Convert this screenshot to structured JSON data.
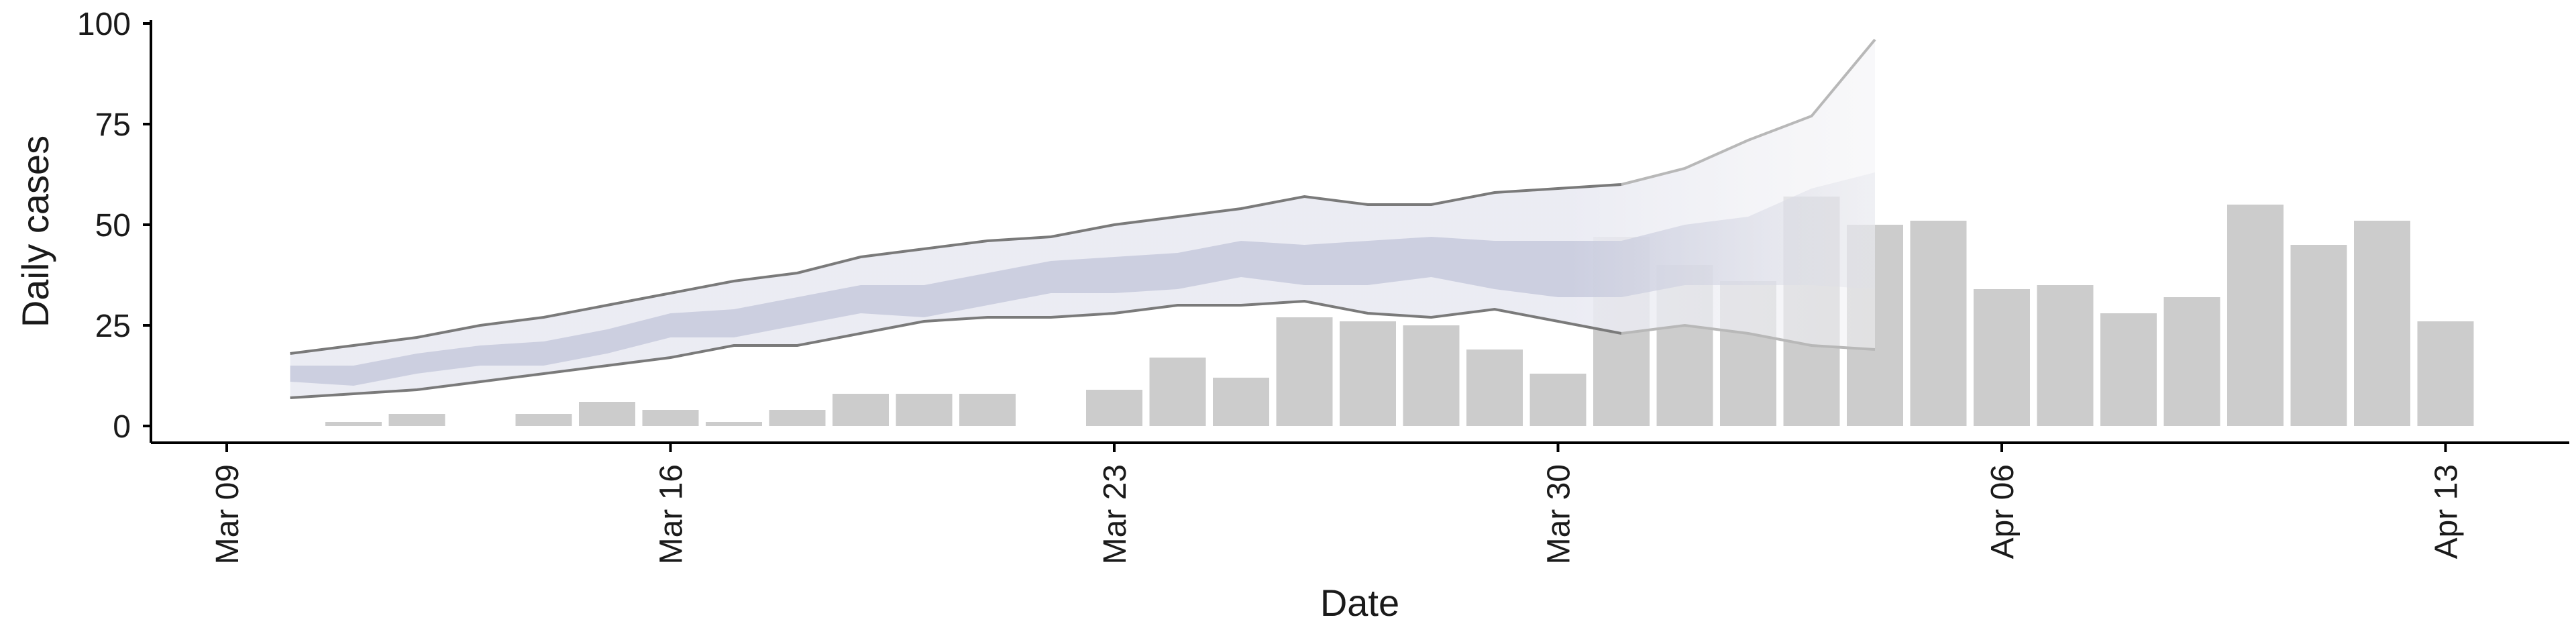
{
  "chart_data": {
    "type": "bar",
    "xlabel": "Date",
    "ylabel": "Daily cases",
    "ylim": [
      0,
      100
    ],
    "y_ticks": [
      0,
      25,
      50,
      75,
      100
    ],
    "xlim": [
      "2020-03-09",
      "2020-04-14"
    ],
    "x_ticks": [
      {
        "date": "2020-03-09",
        "label": "Mar 09"
      },
      {
        "date": "2020-03-16",
        "label": "Mar 16"
      },
      {
        "date": "2020-03-23",
        "label": "Mar 23"
      },
      {
        "date": "2020-03-30",
        "label": "Mar 30"
      },
      {
        "date": "2020-04-06",
        "label": "Apr 06"
      },
      {
        "date": "2020-04-13",
        "label": "Apr 13"
      }
    ],
    "grid": false,
    "series": [
      {
        "type": "bar",
        "color": "#cccccc",
        "x": [
          "2020-03-11",
          "2020-03-12",
          "2020-03-13",
          "2020-03-14",
          "2020-03-15",
          "2020-03-16",
          "2020-03-17",
          "2020-03-18",
          "2020-03-19",
          "2020-03-20",
          "2020-03-21",
          "2020-03-22",
          "2020-03-23",
          "2020-03-24",
          "2020-03-25",
          "2020-03-26",
          "2020-03-27",
          "2020-03-28",
          "2020-03-29",
          "2020-03-30",
          "2020-03-31",
          "2020-04-01",
          "2020-04-02",
          "2020-04-03",
          "2020-04-04",
          "2020-04-05",
          "2020-04-06",
          "2020-04-07",
          "2020-04-08",
          "2020-04-09",
          "2020-04-10",
          "2020-04-11",
          "2020-04-12",
          "2020-04-13"
        ],
        "values": [
          1,
          3,
          0,
          3,
          6,
          4,
          1,
          4,
          8,
          8,
          8,
          0,
          9,
          17,
          12,
          27,
          26,
          25,
          19,
          13,
          47,
          40,
          36,
          57,
          50,
          51,
          34,
          35,
          28,
          32,
          55,
          45,
          51,
          26
        ]
      },
      {
        "type": "band",
        "color": "#e9eaf2",
        "x": [
          "2020-03-10",
          "2020-03-11",
          "2020-03-12",
          "2020-03-13",
          "2020-03-14",
          "2020-03-15",
          "2020-03-16",
          "2020-03-17",
          "2020-03-18",
          "2020-03-19",
          "2020-03-20",
          "2020-03-21",
          "2020-03-22",
          "2020-03-23",
          "2020-03-24",
          "2020-03-25",
          "2020-03-26",
          "2020-03-27",
          "2020-03-28",
          "2020-03-29",
          "2020-03-30",
          "2020-03-31",
          "2020-04-01",
          "2020-04-02",
          "2020-04-03",
          "2020-04-04"
        ],
        "lower": [
          7,
          8,
          9,
          11,
          13,
          15,
          17,
          20,
          20,
          23,
          26,
          27,
          27,
          28,
          30,
          30,
          31,
          28,
          27,
          29,
          26,
          23,
          25,
          23,
          20,
          19
        ],
        "upper": [
          18,
          20,
          22,
          25,
          27,
          30,
          33,
          36,
          38,
          42,
          44,
          46,
          47,
          50,
          52,
          54,
          57,
          55,
          55,
          58,
          59,
          60,
          64,
          71,
          77,
          96
        ]
      },
      {
        "type": "band",
        "color": "#c7cadd",
        "x": [
          "2020-03-10",
          "2020-03-11",
          "2020-03-12",
          "2020-03-13",
          "2020-03-14",
          "2020-03-15",
          "2020-03-16",
          "2020-03-17",
          "2020-03-18",
          "2020-03-19",
          "2020-03-20",
          "2020-03-21",
          "2020-03-22",
          "2020-03-23",
          "2020-03-24",
          "2020-03-25",
          "2020-03-26",
          "2020-03-27",
          "2020-03-28",
          "2020-03-29",
          "2020-03-30",
          "2020-03-31",
          "2020-04-01",
          "2020-04-02",
          "2020-04-03",
          "2020-04-04"
        ],
        "lower": [
          11,
          10,
          13,
          15,
          15,
          18,
          22,
          22,
          25,
          28,
          27,
          30,
          33,
          33,
          34,
          37,
          35,
          35,
          37,
          34,
          32,
          32,
          35,
          35,
          35,
          34
        ],
        "upper": [
          15,
          15,
          18,
          20,
          21,
          24,
          28,
          29,
          32,
          35,
          35,
          38,
          41,
          42,
          43,
          46,
          45,
          46,
          47,
          46,
          46,
          46,
          50,
          52,
          59,
          63
        ]
      }
    ]
  }
}
